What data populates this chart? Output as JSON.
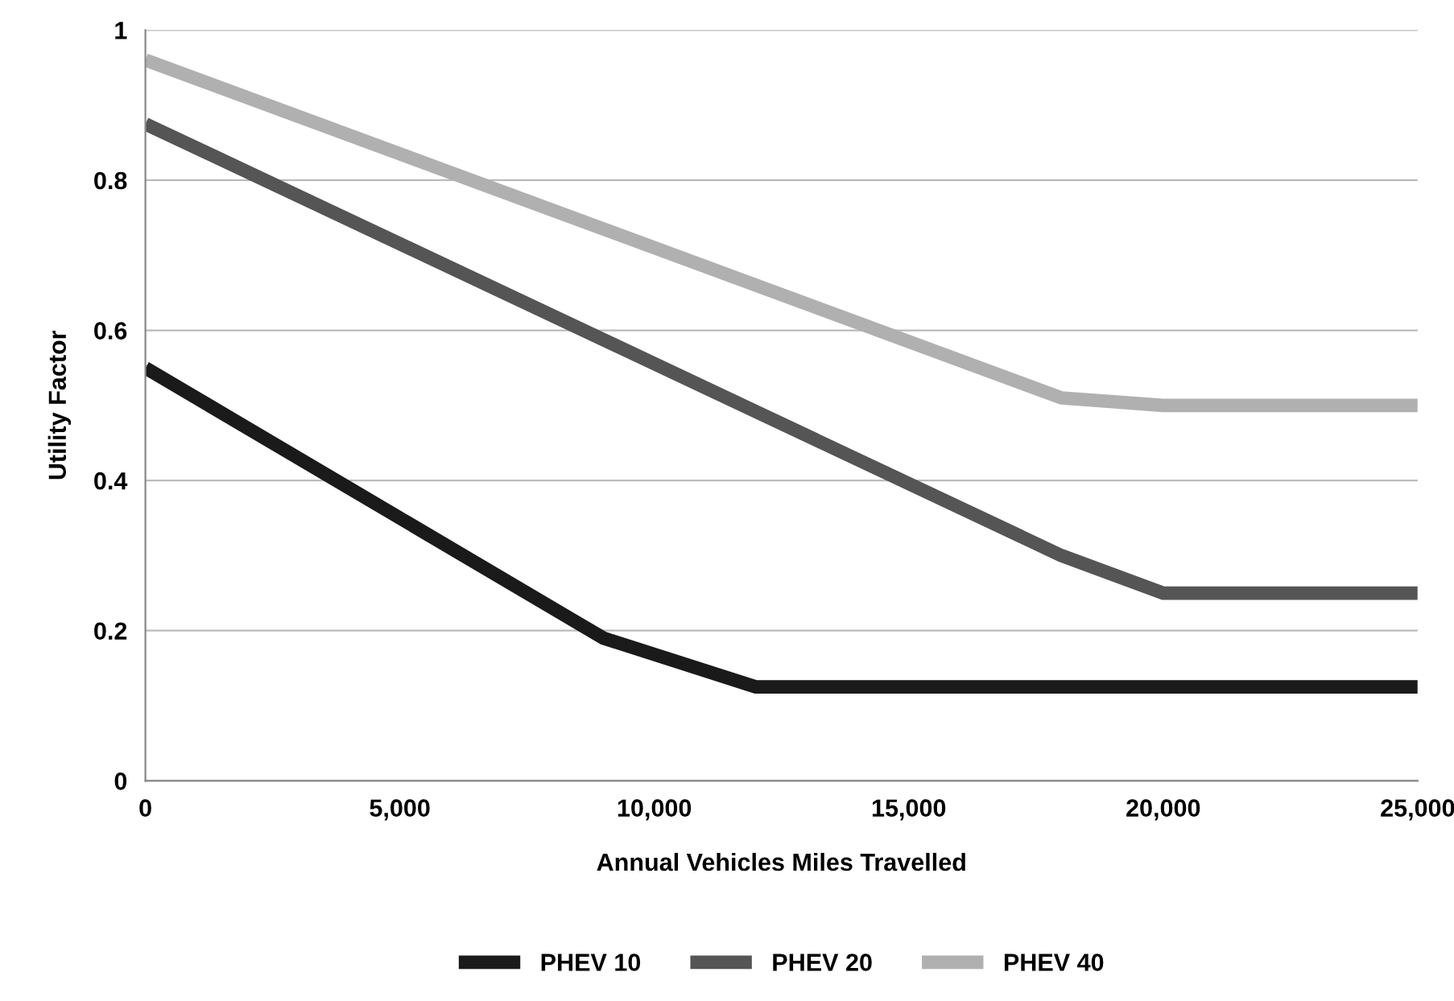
{
  "chart_data": {
    "type": "line",
    "xlabel": "Annual Vehicles Miles Travelled",
    "ylabel": "Utility Factor",
    "xlim": [
      0,
      25000
    ],
    "ylim": [
      0,
      1
    ],
    "xticks": [
      {
        "value": 0,
        "label": "0"
      },
      {
        "value": 5000,
        "label": "5,000"
      },
      {
        "value": 10000,
        "label": "10,000"
      },
      {
        "value": 15000,
        "label": "15,000"
      },
      {
        "value": 20000,
        "label": "20,000"
      },
      {
        "value": 25000,
        "label": "25,000"
      }
    ],
    "yticks": [
      0,
      0.2,
      0.4,
      0.6,
      0.8,
      1
    ],
    "grid": "y",
    "legend": "bottom",
    "marker": "none",
    "line_style": "solid",
    "series": [
      {
        "name": "PHEV 10",
        "color": "#1a1a1a",
        "x": [
          0,
          9000,
          12000,
          25000
        ],
        "values": [
          0.55,
          0.19,
          0.125,
          0.125
        ]
      },
      {
        "name": "PHEV 20",
        "color": "#555555",
        "x": [
          0,
          18000,
          20000,
          25000
        ],
        "values": [
          0.875,
          0.3,
          0.25,
          0.25
        ]
      },
      {
        "name": "PHEV 40",
        "color": "#b0b0b0",
        "x": [
          0,
          18000,
          20000,
          25000
        ],
        "values": [
          0.96,
          0.51,
          0.5,
          0.5
        ]
      }
    ]
  }
}
